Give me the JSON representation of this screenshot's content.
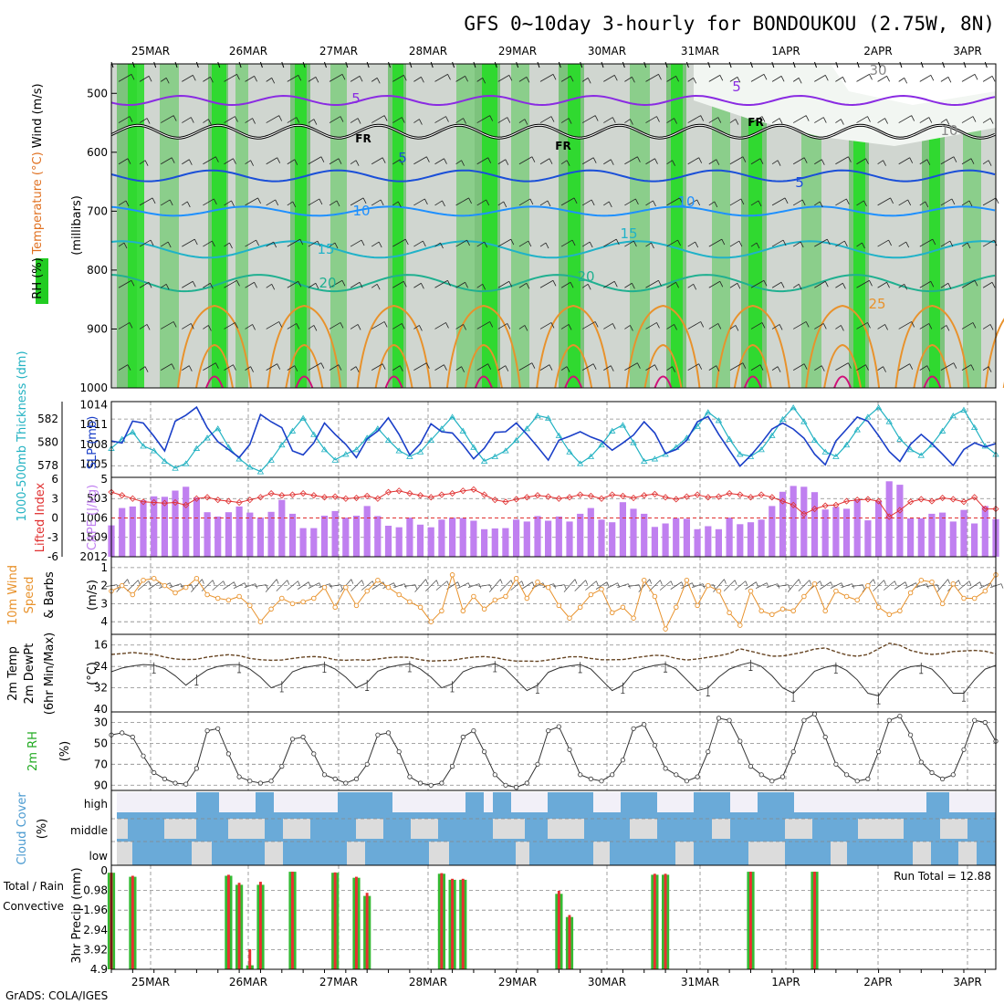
{
  "title": "GFS 0~10day 3-hourly for BONDOUKOU (2.75W, 8N)",
  "footer": "GrADS: COLA/IGES",
  "run_total": "Run Total = 12.88",
  "dates": [
    "25MAR",
    "26MAR",
    "27MAR",
    "28MAR",
    "29MAR",
    "30MAR",
    "31MAR",
    "1APR",
    "2APR",
    "3APR"
  ],
  "chart_data": [
    {
      "type": "heatmap",
      "panel": "upper-air",
      "ylabel": "(millibars)",
      "legend_labels": [
        "RH (%)",
        "Temperature (°C)",
        "Wind (m/s)"
      ],
      "y_ticks": [
        "500",
        "600",
        "700",
        "800",
        "900",
        "1000"
      ],
      "ylim": [
        1000,
        450
      ],
      "contour_labels": [
        "5",
        "5",
        "5",
        "5",
        "10",
        "10",
        "15",
        "15",
        "20",
        "20",
        "25",
        "FR",
        "FR",
        "FR",
        "30",
        "10"
      ]
    },
    {
      "type": "line",
      "panel": "thickness-slp",
      "ylabel_left": "1000-500mb Thickness (dm)",
      "ylabel_right": "SLP (mb)",
      "left_ticks": [
        "582",
        "580",
        "578"
      ],
      "right_ticks": [
        "1014",
        "1011",
        "1008",
        "1005"
      ],
      "series": [
        {
          "name": "Thickness",
          "values": [
            579.5,
            580.3,
            580.9,
            579.7,
            579.3,
            578.4,
            577.8,
            578.2,
            579.5,
            580.4,
            581.2,
            579.6,
            578.6,
            577.9,
            577.5,
            578.5,
            579.8,
            581.0,
            582.1,
            580.7,
            579.4,
            578.5,
            579.0,
            579.4,
            580.4,
            581.2,
            580.2,
            579.3,
            578.8,
            579.2,
            580.2,
            581.2,
            582.2,
            581.0,
            579.6,
            578.4,
            578.8,
            579.3,
            580.2,
            581.2,
            582.3,
            582.1,
            580.6,
            579.2,
            578.2,
            578.8,
            579.8,
            581.0,
            581.5,
            580.0,
            578.4,
            578.6,
            579.0,
            579.6,
            580.4,
            581.4,
            582.6,
            581.9,
            580.3,
            579.0,
            578.8,
            579.4,
            580.6,
            582.0,
            583.0,
            581.8,
            580.2,
            579.2,
            578.8,
            579.8,
            581.1,
            582.2,
            583.0,
            581.8,
            580.3,
            579.4,
            578.9,
            579.8,
            581.0,
            582.3,
            582.8,
            581.3,
            579.7,
            579.0
          ]
        },
        {
          "name": "SLP",
          "values": [
            1008.5,
            1008.2,
            1011.5,
            1011.2,
            1009.2,
            1007.0,
            1011.5,
            1012.4,
            1013.6,
            1010.5,
            1008.4,
            1007.2,
            1006.0,
            1008.0,
            1012.5,
            1011.4,
            1010.5,
            1007.0,
            1006.4,
            1008.2,
            1011.2,
            1009.5,
            1008.0,
            1006.0,
            1008.8,
            1010.0,
            1012.0,
            1009.5,
            1006.4,
            1008.1,
            1011.1,
            1009.9,
            1009.7,
            1007.9,
            1005.8,
            1007.4,
            1009.8,
            1009.9,
            1011.2,
            1009.5,
            1007.6,
            1005.6,
            1008.6,
            1009.2,
            1009.9,
            1009.1,
            1008.5,
            1007.1,
            1008.2,
            1009.4,
            1011.4,
            1009.7,
            1006.6,
            1007.2,
            1008.6,
            1011.4,
            1012.2,
            1009.5,
            1007.1,
            1004.7,
            1006.3,
            1008.2,
            1010.3,
            1011.2,
            1010.3,
            1008.9,
            1006.5,
            1004.9,
            1008.5,
            1010.3,
            1012.1,
            1011.5,
            1009.3,
            1006.9,
            1005.4,
            1008.0,
            1009.5,
            1008.1,
            1006.5,
            1004.8,
            1007.2,
            1008.2,
            1007.6,
            1008.1
          ]
        }
      ]
    },
    {
      "type": "bar",
      "panel": "cape-li",
      "ylabel_left": "Lifted Index",
      "ylabel_right": "CAPE (J/kg)",
      "left_ticks": [
        "-6",
        "-3",
        "0",
        "3",
        "6"
      ],
      "right_ticks": [
        "2012",
        "1509",
        "1006",
        "503",
        "5"
      ],
      "series": [
        {
          "name": "CAPE",
          "values": [
            1200,
            750,
            710,
            550,
            450,
            460,
            300,
            200,
            480,
            860,
            970,
            860,
            710,
            870,
            1000,
            850,
            540,
            900,
            1270,
            1270,
            950,
            830,
            1000,
            950,
            700,
            960,
            1210,
            1250,
            1000,
            1180,
            1250,
            1050,
            1000,
            1010,
            1080,
            1300,
            1280,
            1270,
            1050,
            1100,
            960,
            1080,
            970,
            1100,
            900,
            750,
            1050,
            1120,
            600,
            770,
            900,
            1240,
            1150,
            1010,
            1030,
            1300,
            1220,
            1300,
            1000,
            1170,
            1120,
            1050,
            700,
            330,
            180,
            200,
            340,
            790,
            720,
            770,
            530,
            1070,
            560,
            60,
            150,
            1020,
            1020,
            900,
            870,
            1100,
            800,
            1150,
            700,
            1040
          ]
        },
        {
          "name": "Lifted Index",
          "values": [
            -4.0,
            -3.5,
            -3.0,
            -2.5,
            -2.4,
            -2.3,
            -2.4,
            -2.0,
            -3.0,
            -3.2,
            -2.8,
            -2.6,
            -2.4,
            -2.8,
            -3.2,
            -3.8,
            -3.5,
            -3.6,
            -3.8,
            -3.5,
            -3.2,
            -3.3,
            -3.0,
            -3.1,
            -3.4,
            -3.0,
            -4.0,
            -4.2,
            -3.8,
            -3.5,
            -3.2,
            -3.6,
            -3.8,
            -4.2,
            -4.4,
            -3.6,
            -2.8,
            -2.5,
            -2.9,
            -3.2,
            -3.5,
            -3.3,
            -3.0,
            -3.2,
            -3.6,
            -3.4,
            -3.0,
            -3.6,
            -3.4,
            -3.1,
            -3.5,
            -3.7,
            -3.2,
            -2.9,
            -3.3,
            -3.6,
            -3.2,
            -3.3,
            -3.8,
            -3.6,
            -3.2,
            -3.6,
            -3.2,
            -2.6,
            -2.0,
            -0.6,
            -1.4,
            -1.9,
            -2.0,
            -2.6,
            -2.8,
            -2.9,
            -2.6,
            -0.2,
            -1.2,
            -2.5,
            -2.9,
            -2.6,
            -3.1,
            -2.9,
            -2.5,
            -3.2,
            -1.4,
            -1.4
          ]
        }
      ]
    },
    {
      "type": "line",
      "panel": "wind10m",
      "ylabel": "10m Wind Speed (m/s) & Barbs",
      "y_ticks": [
        "4",
        "3",
        "2",
        "1"
      ],
      "ylim": [
        0.4,
        4.7
      ],
      "series": [
        {
          "name": "Speed",
          "values": [
            2.3,
            2.0,
            2.5,
            1.7,
            1.6,
            2.0,
            2.4,
            2.1,
            1.6,
            2.5,
            2.7,
            2.8,
            2.6,
            3.1,
            4.0,
            3.3,
            2.7,
            3.0,
            2.9,
            2.7,
            2.1,
            3.2,
            2.1,
            3.1,
            2.3,
            1.7,
            2.1,
            2.5,
            2.9,
            3.2,
            4.0,
            3.4,
            1.4,
            3.4,
            2.6,
            3.3,
            2.8,
            2.6,
            1.6,
            2.7,
            1.8,
            2.1,
            3.1,
            3.8,
            3.2,
            2.5,
            2.2,
            3.5,
            3.2,
            3.8,
            1.7,
            2.6,
            4.4,
            3.2,
            1.7,
            3.1,
            2.0,
            2.3,
            3.5,
            4.2,
            2.3,
            3.4,
            3.6,
            3.3,
            3.4,
            2.6,
            1.9,
            3.4,
            2.3,
            2.6,
            2.8,
            2.0,
            3.2,
            3.6,
            3.4,
            2.4,
            1.7,
            1.8,
            3.0,
            1.9,
            2.7,
            2.7,
            2.3,
            1.4
          ]
        }
      ]
    },
    {
      "type": "area",
      "panel": "temp2m",
      "ylabel": "2m Temp 2m DewPt (6hr Min/Max) (°C)",
      "y_ticks": [
        "40",
        "32",
        "24",
        "16"
      ],
      "ylim": [
        12,
        40
      ],
      "series": [
        {
          "name": "Temp",
          "values": [
            26,
            24.6,
            23.8,
            23.3,
            23.5,
            24.8,
            27.5,
            31,
            28,
            25.3,
            24,
            23.4,
            23.3,
            25,
            28,
            32,
            30.5,
            26,
            24.5,
            23.8,
            23.2,
            25,
            28,
            32,
            30,
            25.8,
            24.3,
            23.5,
            23,
            25,
            28,
            32,
            30.5,
            26,
            24.4,
            23.8,
            23,
            25,
            29,
            33,
            31,
            26.2,
            24.6,
            23.8,
            23.3,
            25,
            29,
            33,
            31,
            26,
            24.6,
            23.6,
            23.1,
            25,
            29,
            33,
            32,
            28,
            25,
            23.5,
            22.5,
            24,
            27.5,
            32,
            34,
            30,
            25.8,
            24.3,
            23.5,
            25.5,
            29,
            34,
            35,
            29.5,
            25.5,
            24.1,
            23.6,
            25,
            29,
            34,
            34,
            29,
            25,
            23.6
          ]
        },
        {
          "name": "DewPt",
          "values": [
            19.5,
            19.2,
            18.8,
            19.2,
            19.5,
            20.5,
            21.2,
            21.4,
            21.3,
            20.5,
            20,
            19.6,
            20,
            21,
            21.5,
            21.7,
            21.6,
            21,
            20.5,
            20.3,
            20.6,
            21.5,
            21.7,
            21.5,
            21.7,
            21.2,
            20.7,
            20.5,
            20.6,
            21.5,
            22,
            21.8,
            21.7,
            21,
            20.5,
            20.3,
            20.7,
            21.5,
            22,
            22,
            22.1,
            21.6,
            21,
            20.4,
            20.4,
            21,
            21.5,
            21.5,
            21.4,
            20.8,
            20.3,
            19.8,
            20,
            21,
            21.6,
            21.2,
            20.6,
            20,
            19.2,
            17.4,
            18.3,
            19.3,
            20.2,
            20.1,
            19.4,
            18.6,
            17.5,
            17.1,
            18.5,
            19.7,
            20.2,
            19.5,
            17.4,
            15.3,
            16.1,
            18,
            19,
            19.5,
            19.2,
            18.4,
            18.2,
            18,
            18.3,
            19.3
          ]
        }
      ]
    },
    {
      "type": "area",
      "panel": "rh2m",
      "ylabel": "2m RH (%)",
      "y_ticks": [
        "90",
        "70",
        "50",
        "30"
      ],
      "ylim": [
        20,
        95
      ],
      "series": [
        {
          "name": "RH",
          "values": [
            42,
            40,
            44,
            62,
            78,
            84,
            88,
            89,
            74,
            38,
            36,
            60,
            82,
            86,
            88,
            86,
            72,
            46,
            44,
            60,
            80,
            84,
            88,
            84,
            70,
            42,
            40,
            58,
            82,
            88,
            90,
            88,
            72,
            44,
            38,
            58,
            80,
            90,
            92,
            88,
            70,
            38,
            34,
            56,
            80,
            84,
            86,
            80,
            66,
            36,
            32,
            52,
            74,
            80,
            86,
            82,
            58,
            26,
            28,
            48,
            72,
            80,
            86,
            82,
            58,
            28,
            22,
            44,
            70,
            80,
            86,
            84,
            58,
            28,
            24,
            42,
            68,
            78,
            84,
            80,
            56,
            28,
            30,
            48
          ]
        }
      ]
    },
    {
      "type": "heatmap",
      "panel": "cloud",
      "ylabel": "Cloud Cover (%)",
      "y_ticks": [
        "high",
        "middle",
        "low"
      ]
    },
    {
      "type": "bar",
      "panel": "precip",
      "ylabel": "3hr Precip (mm)",
      "legend_labels": [
        "Total / Rain",
        "Convective"
      ],
      "y_ticks": [
        "4.9",
        "3.92",
        "2.94",
        "1.96",
        "0.98",
        "0"
      ],
      "ylim": [
        0,
        4.9
      ],
      "series": [
        {
          "name": "Total",
          "values": [
            0.1,
            0,
            0.3,
            0,
            0,
            0,
            0,
            0,
            0,
            0,
            0,
            0.25,
            0.7,
            4.7,
            0.7,
            0,
            0,
            0.05,
            0,
            0,
            0,
            0.1,
            0,
            0.35,
            1.25,
            0,
            0,
            0,
            0,
            0,
            0,
            0.15,
            0.45,
            0.45,
            0,
            0,
            0,
            0,
            0,
            0,
            0,
            0,
            1.15,
            2.3,
            0,
            0,
            0,
            0,
            0,
            0,
            0,
            0.2,
            0.2,
            0,
            0,
            0,
            0,
            0,
            0,
            0,
            0.05,
            0,
            0,
            0,
            0,
            0,
            0.05,
            0,
            0,
            0,
            0,
            0,
            0,
            0,
            0,
            0,
            0,
            0,
            0,
            0,
            0,
            0,
            0,
            0
          ]
        },
        {
          "name": "Convective",
          "values": [
            0.1,
            0,
            0.25,
            0,
            0,
            0,
            0,
            0,
            0,
            0,
            0,
            0.2,
            0.6,
            3.9,
            0.55,
            0,
            0,
            0.05,
            0,
            0,
            0,
            0.08,
            0,
            0.3,
            1.1,
            0,
            0,
            0,
            0,
            0,
            0,
            0.12,
            0.4,
            0.4,
            0,
            0,
            0,
            0,
            0,
            0,
            0,
            0,
            1.0,
            2.2,
            0,
            0,
            0,
            0,
            0,
            0,
            0,
            0.15,
            0.15,
            0,
            0,
            0,
            0,
            0,
            0,
            0,
            0.05,
            0,
            0,
            0,
            0,
            0,
            0.05,
            0,
            0,
            0,
            0,
            0,
            0,
            0,
            0,
            0,
            0,
            0,
            0,
            0,
            0,
            0,
            0,
            0
          ]
        }
      ]
    }
  ]
}
